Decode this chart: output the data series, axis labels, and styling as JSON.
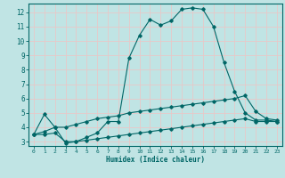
{
  "xlabel": "Humidex (Indice chaleur)",
  "bg_color": "#c0e4e4",
  "grid_color": "#e8c8c8",
  "line_color": "#006666",
  "xlim": [
    -0.5,
    23.5
  ],
  "ylim": [
    2.7,
    12.6
  ],
  "xticks": [
    0,
    1,
    2,
    3,
    4,
    5,
    6,
    7,
    8,
    9,
    10,
    11,
    12,
    13,
    14,
    15,
    16,
    17,
    18,
    19,
    20,
    21,
    22,
    23
  ],
  "yticks": [
    3,
    4,
    5,
    6,
    7,
    8,
    9,
    10,
    11,
    12
  ],
  "curve1_x": [
    0,
    1,
    2,
    3,
    4,
    5,
    6,
    7,
    8,
    9,
    10,
    11,
    12,
    13,
    14,
    15,
    16,
    17,
    18,
    19,
    20,
    21,
    22,
    23
  ],
  "curve1_y": [
    3.5,
    4.9,
    4.0,
    2.9,
    3.0,
    3.3,
    3.6,
    4.4,
    4.4,
    8.8,
    10.4,
    11.5,
    11.1,
    11.4,
    12.2,
    12.3,
    12.2,
    11.0,
    8.5,
    6.5,
    5.0,
    4.5,
    4.5,
    4.4
  ],
  "curve2_x": [
    0,
    1,
    2,
    3,
    4,
    5,
    6,
    7,
    8,
    9,
    10,
    11,
    12,
    13,
    14,
    15,
    16,
    17,
    18,
    19,
    20,
    21,
    22,
    23
  ],
  "curve2_y": [
    3.5,
    3.7,
    4.0,
    4.0,
    4.2,
    4.4,
    4.6,
    4.7,
    4.8,
    5.0,
    5.1,
    5.2,
    5.3,
    5.4,
    5.5,
    5.6,
    5.7,
    5.8,
    5.9,
    6.0,
    6.2,
    5.1,
    4.6,
    4.5
  ],
  "curve3_x": [
    0,
    1,
    2,
    3,
    4,
    5,
    6,
    7,
    8,
    9,
    10,
    11,
    12,
    13,
    14,
    15,
    16,
    17,
    18,
    19,
    20,
    21,
    22,
    23
  ],
  "curve3_y": [
    3.5,
    3.5,
    3.6,
    3.0,
    3.0,
    3.1,
    3.2,
    3.3,
    3.4,
    3.5,
    3.6,
    3.7,
    3.8,
    3.9,
    4.0,
    4.1,
    4.2,
    4.3,
    4.4,
    4.5,
    4.6,
    4.4,
    4.4,
    4.4
  ]
}
